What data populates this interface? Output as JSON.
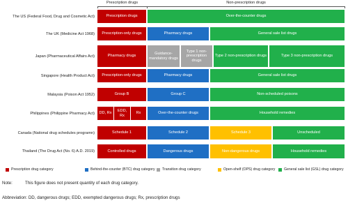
{
  "header": {
    "prescription": "Prescription drugs",
    "non_prescription": "Non-prescription drugs"
  },
  "rows": [
    {
      "country": "The US (Federal Food, Drug and Cosmetic Act)",
      "cells": [
        "Prescription drugs",
        "Over-the-counter drugs"
      ]
    },
    {
      "country": "The UK (Medicine Act 1968)",
      "cells": [
        "Prescription-only drugs",
        "Pharmacy drugs",
        "General sale list drugs"
      ]
    },
    {
      "country": "Japan (Pharmaceutical Affairs Act)",
      "cells": [
        "Pharmacy drugs",
        "Guidance-mandatory drugs",
        "Type 1 non-prescription drugs",
        "Type 2 non-prescription drugs",
        "Type 3 non-prescription drugs"
      ]
    },
    {
      "country": "Singapore (Health Product Act)",
      "cells": [
        "Prescription-only drugs",
        "Pharmacy drugs",
        "General sale list drugs"
      ]
    },
    {
      "country": "Malaysia (Poison Act 1952)",
      "cells": [
        "Group B",
        "Group C",
        "Non-scheduled poisons"
      ]
    },
    {
      "country": "Philippines (Philippine Pharmacy Act)",
      "cells": [
        "DD, Rx",
        "EDD, Rx",
        "Rx",
        "Over-the-counter drugs",
        "Household remedies"
      ]
    },
    {
      "country": "Canada (National drug schedules programn)",
      "cells": [
        "Schedule 1",
        "Schedule 2",
        "Schedule 3",
        "Unscheduled"
      ]
    },
    {
      "country": "Thailand (The Drug Act (No. 6) A.D. 2019)",
      "cells": [
        "Controlled drugs",
        "Dangerous drugs",
        "Non-dangerous drugs",
        "Household remedies"
      ]
    }
  ],
  "legend": [
    "Prescription drug category",
    "Behind-the-counter (BTC) drug category",
    "Transition drug category",
    "Open-shelf (OPS) drug category",
    "General sale list (GSL) drug category"
  ],
  "note": {
    "label": "Note:",
    "text": "This figure does not present quantity of each drug category."
  },
  "abbreviation": "Abbreviation: DD, dangerous drugs; EDD, exempted dangerous drugs; Rx, prescription drugs"
}
